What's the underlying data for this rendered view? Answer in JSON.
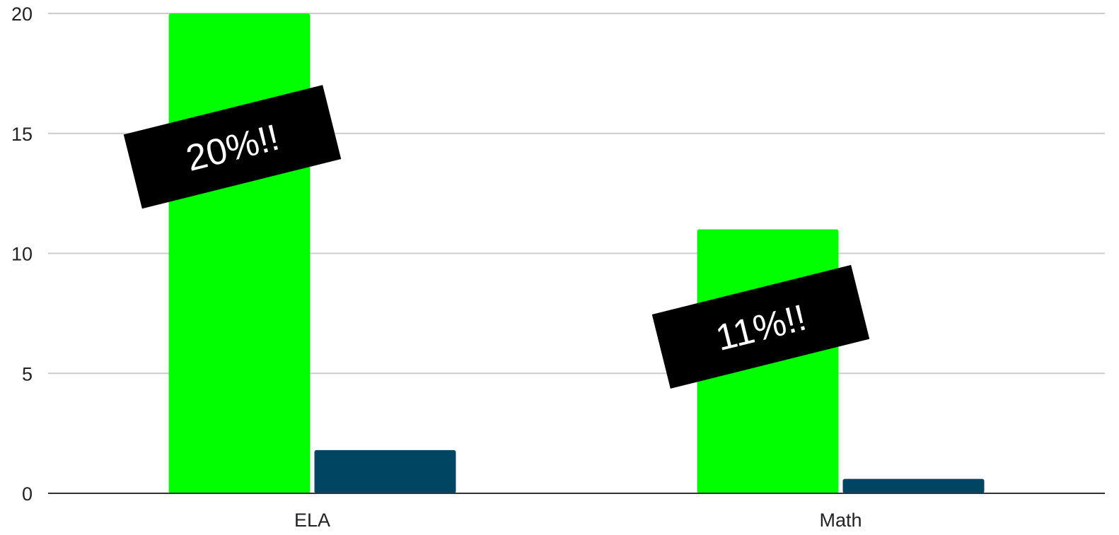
{
  "chart_data": {
    "type": "bar",
    "title": "",
    "xlabel": "",
    "ylabel": "",
    "categories": [
      "ELA",
      "Math"
    ],
    "series": [
      {
        "values": [
          20,
          11
        ],
        "color": "#00ff00"
      },
      {
        "values": [
          1.8,
          0.6
        ],
        "color": "#004561"
      }
    ],
    "ylim": [
      0,
      20
    ],
    "yticks": [
      0,
      5,
      10,
      15,
      20
    ],
    "grid": true,
    "legend": "none",
    "annotations": [
      {
        "text": "20%!!",
        "category": "ELA",
        "y": 14.5,
        "angle_deg": -14
      },
      {
        "text": "11%!!",
        "category": "Math",
        "y": 7,
        "angle_deg": -14
      }
    ]
  }
}
